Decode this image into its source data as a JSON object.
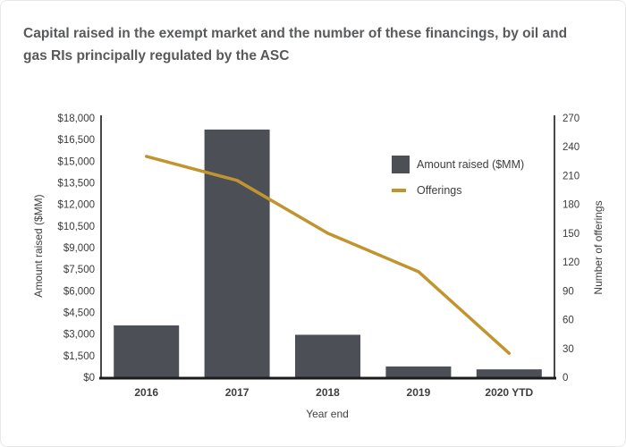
{
  "title_lines": [
    "Capital raised in the exempt market and the number of these financings, by oil and",
    "gas RIs principally regulated by the ASC"
  ],
  "chart_data": {
    "type": "bar",
    "subtype": "combo-bar-line",
    "categories": [
      "2016",
      "2017",
      "2018",
      "2019",
      "2020 YTD"
    ],
    "series": [
      {
        "name": "Amount raised ($MM)",
        "type": "bar",
        "axis": "left",
        "color": "#4d4f56",
        "values": [
          3600,
          17200,
          2950,
          750,
          550
        ]
      },
      {
        "name": "Offerings",
        "type": "line",
        "axis": "right",
        "color": "#c0952f",
        "values": [
          230,
          205,
          150,
          110,
          25
        ]
      }
    ],
    "left_axis": {
      "label": "Amount raised ($MM)",
      "min": 0,
      "max": 18000,
      "step": 1500,
      "ticks": [
        "$18,000",
        "$16,500",
        "$15,000",
        "$13,500",
        "$12,000",
        "$10,500",
        "$9,000",
        "$7,500",
        "$6,000",
        "$4,500",
        "$3,000",
        "$1,500",
        "$0"
      ]
    },
    "right_axis": {
      "label": "Number of offerings",
      "min": 0,
      "max": 270,
      "step": 30,
      "ticks": [
        "270",
        "240",
        "210",
        "180",
        "150",
        "120",
        "90",
        "60",
        "30",
        "0"
      ]
    },
    "x_axis": {
      "label": "Year end"
    },
    "legend_position": "inside-top-right",
    "grid": false,
    "colors": {
      "axis_line": "#1b1b1b",
      "tick_text": "#3a3b3d",
      "category_text": "#3d3e40",
      "title_text": "#58595b"
    }
  }
}
